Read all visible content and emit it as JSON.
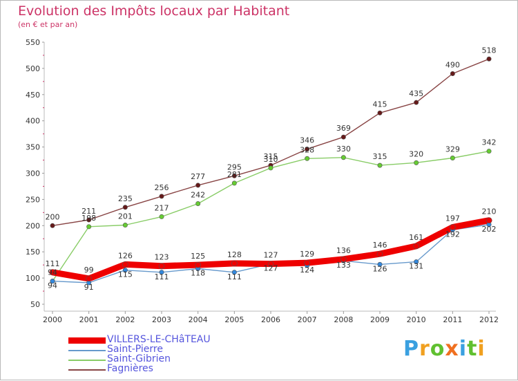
{
  "title": "Evolution des Impôts locaux par Habitant",
  "subtitle": "(en € et par an)",
  "logo": [
    "P",
    "r",
    "o",
    "x",
    "i",
    "t",
    "i"
  ],
  "logo_colors": [
    "#3aa0e0",
    "#f0a020",
    "#60c030",
    "#f07020",
    "#3aa0e0",
    "#60c030",
    "#f0a020"
  ],
  "chart_data": {
    "type": "line",
    "x": [
      "2000",
      "2001",
      "2002",
      "2003",
      "2004",
      "2005",
      "2006",
      "2007",
      "2008",
      "2009",
      "2010",
      "2011",
      "2012"
    ],
    "ylim": [
      50,
      550
    ],
    "yticks": [
      "50",
      "100",
      "150",
      "200",
      "250",
      "300",
      "350",
      "400",
      "450",
      "500",
      "550"
    ],
    "series": [
      {
        "name": "Fagnières",
        "color": "#884444",
        "markerColor": "#661a1a",
        "values": [
          200,
          211,
          235,
          256,
          277,
          295,
          315,
          346,
          369,
          415,
          435,
          490,
          518
        ]
      },
      {
        "name": "Saint-Gibrien",
        "color": "#88cc66",
        "markerColor": "#66cc33",
        "values": [
          94,
          198,
          201,
          217,
          242,
          281,
          310,
          328,
          330,
          315,
          320,
          329,
          342
        ]
      },
      {
        "name": "Saint-Pierre",
        "color": "#6699cc",
        "markerColor": "#3388dd",
        "values": [
          94,
          91,
          115,
          111,
          118,
          111,
          127,
          124,
          133,
          126,
          131,
          192,
          202
        ]
      },
      {
        "name": "VILLERS-LE-CHâTEAU",
        "color": "#ee0000",
        "markerColor": "#ee0000",
        "values": [
          111,
          99,
          126,
          123,
          125,
          128,
          127,
          129,
          136,
          146,
          161,
          197,
          210
        ]
      }
    ],
    "legend": [
      "VILLERS-LE-CHâTEAU",
      "Saint-Pierre",
      "Saint-Gibrien",
      "Fagnières"
    ],
    "legend_colors": [
      "#ee0000",
      "#6699cc",
      "#88cc66",
      "#884444"
    ],
    "grid": false
  }
}
